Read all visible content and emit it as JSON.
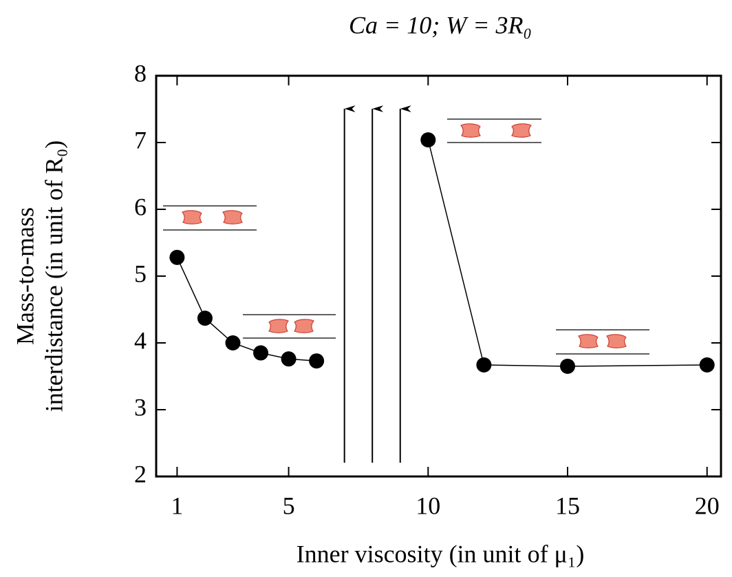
{
  "chart_data": {
    "type": "line",
    "title": "Ca = 10; W = 3R₀",
    "xlabel": "Inner viscosity (in unit of μ₁)",
    "ylabel": [
      "Mass-to-mass",
      "interdistance (in unit of R₀)"
    ],
    "x": [
      1,
      2,
      3,
      4,
      5,
      6,
      7,
      8,
      9,
      10,
      12,
      15,
      20
    ],
    "series": [
      {
        "color": "#000000",
        "values": [
          5.28,
          4.37,
          4.0,
          3.85,
          3.76,
          3.73,
          null,
          null,
          null,
          7.04,
          3.67,
          3.65,
          3.67
        ]
      }
    ],
    "arrows_x": [
      7,
      8,
      9
    ],
    "xlim": [
      0.25,
      20.5
    ],
    "xticks": [
      1,
      5,
      10,
      15,
      20
    ],
    "ylim": [
      2,
      8
    ],
    "yticks": [
      2,
      3,
      4,
      5,
      6,
      7,
      8
    ],
    "grid": false
  }
}
